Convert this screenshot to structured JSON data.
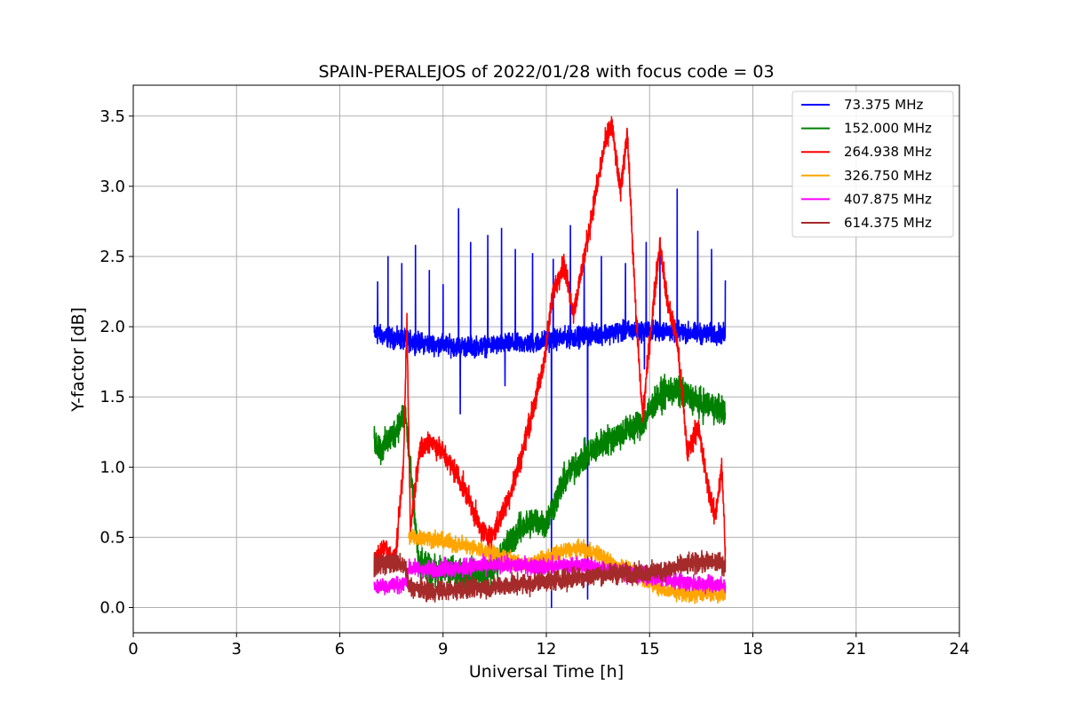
{
  "chart_data": {
    "type": "line",
    "title": "SPAIN-PERALEJOS of 2022/01/28 with focus code = 03",
    "xlabel": "Universal Time [h]",
    "ylabel": "Y-factor [dB]",
    "xlim": [
      0,
      24
    ],
    "ylim": [
      -0.18,
      3.72
    ],
    "xticks": [
      0,
      3,
      6,
      9,
      12,
      15,
      18,
      21,
      24
    ],
    "xtick_labels": [
      "0",
      "3",
      "6",
      "9",
      "12",
      "15",
      "18",
      "21",
      "24"
    ],
    "yticks": [
      0.0,
      0.5,
      1.0,
      1.5,
      2.0,
      2.5,
      3.0,
      3.5
    ],
    "ytick_labels": [
      "0.0",
      "0.5",
      "1.0",
      "1.5",
      "2.0",
      "2.5",
      "3.0",
      "3.5"
    ],
    "grid": true,
    "legend_position": "top-right",
    "series": [
      {
        "name": "73.375 MHz",
        "label": " 73.375 MHz",
        "color": "#0000ff",
        "x": [
          7.0,
          7.5,
          8.0,
          8.5,
          9.0,
          9.5,
          10.0,
          10.5,
          11.0,
          11.5,
          12.0,
          12.5,
          13.0,
          13.5,
          14.0,
          14.5,
          15.0,
          15.5,
          16.0,
          16.5,
          17.0,
          17.2
        ],
        "y": [
          1.95,
          1.92,
          1.9,
          1.88,
          1.87,
          1.86,
          1.86,
          1.87,
          1.88,
          1.88,
          1.9,
          1.92,
          1.93,
          1.95,
          1.96,
          1.97,
          1.97,
          1.97,
          1.96,
          1.95,
          1.95,
          1.94
        ],
        "noise": 0.06,
        "spikes": [
          [
            7.1,
            2.32
          ],
          [
            7.4,
            2.5
          ],
          [
            7.8,
            2.45
          ],
          [
            8.2,
            2.58
          ],
          [
            8.6,
            2.4
          ],
          [
            9.0,
            2.3
          ],
          [
            9.45,
            2.84
          ],
          [
            9.8,
            2.6
          ],
          [
            10.3,
            2.65
          ],
          [
            10.7,
            2.7
          ],
          [
            11.1,
            2.55
          ],
          [
            11.6,
            2.52
          ],
          [
            12.2,
            2.48
          ],
          [
            12.7,
            2.72
          ],
          [
            13.1,
            2.45
          ],
          [
            13.6,
            2.5
          ],
          [
            14.3,
            2.45
          ],
          [
            14.9,
            2.6
          ],
          [
            15.3,
            2.55
          ],
          [
            15.8,
            2.98
          ],
          [
            16.4,
            2.68
          ],
          [
            16.8,
            2.55
          ],
          [
            17.2,
            2.33
          ]
        ],
        "dips": [
          [
            9.5,
            1.38
          ],
          [
            10.8,
            1.58
          ],
          [
            12.15,
            0.0
          ],
          [
            13.2,
            0.06
          ],
          [
            14.85,
            1.7
          ]
        ]
      },
      {
        "name": "152.000 MHz",
        "label": "152.000 MHz",
        "color": "#008000",
        "x": [
          7.0,
          7.2,
          7.6,
          7.9,
          8.3,
          8.8,
          9.2,
          9.6,
          10.0,
          10.4,
          10.8,
          11.2,
          11.6,
          12.0,
          12.5,
          13.0,
          13.5,
          14.0,
          14.5,
          14.8,
          15.2,
          15.6,
          16.0,
          16.5,
          17.0,
          17.2
        ],
        "y": [
          1.2,
          1.12,
          1.25,
          1.4,
          0.3,
          0.25,
          0.26,
          0.24,
          0.24,
          0.25,
          0.42,
          0.55,
          0.62,
          0.6,
          0.9,
          1.05,
          1.15,
          1.22,
          1.28,
          1.32,
          1.48,
          1.55,
          1.52,
          1.45,
          1.42,
          1.4
        ],
        "noise": 0.09
      },
      {
        "name": "264.938 MHz",
        "label": "264.938 MHz",
        "color": "#ff0000",
        "x": [
          7.0,
          7.3,
          7.6,
          7.85,
          7.95,
          8.05,
          8.3,
          8.6,
          9.0,
          9.4,
          9.8,
          10.1,
          10.4,
          10.7,
          11.0,
          11.3,
          11.6,
          11.9,
          12.2,
          12.5,
          12.8,
          13.1,
          13.4,
          13.7,
          13.9,
          14.15,
          14.35,
          14.6,
          14.8,
          15.0,
          15.3,
          15.5,
          15.8,
          16.1,
          16.4,
          16.7,
          16.9,
          17.1,
          17.2
        ],
        "y": [
          0.3,
          0.45,
          0.3,
          1.0,
          2.05,
          0.55,
          1.1,
          1.2,
          1.1,
          0.95,
          0.75,
          0.55,
          0.5,
          0.65,
          0.85,
          1.1,
          1.4,
          1.7,
          2.25,
          2.45,
          2.1,
          2.5,
          2.9,
          3.3,
          3.45,
          2.95,
          3.4,
          2.1,
          1.35,
          1.9,
          2.6,
          2.2,
          1.9,
          1.1,
          1.3,
          0.85,
          0.65,
          1.0,
          0.4
        ],
        "noise": 0.07
      },
      {
        "name": "326.750 MHz",
        "label": "326.750 MHz",
        "color": "#ffa500",
        "x": [
          8.0,
          8.5,
          9.0,
          9.5,
          10.0,
          10.5,
          11.0,
          11.5,
          12.0,
          12.5,
          13.0,
          13.5,
          14.0,
          14.5,
          15.0,
          15.5,
          16.0,
          16.5,
          17.0,
          17.2
        ],
        "y": [
          0.5,
          0.5,
          0.47,
          0.45,
          0.42,
          0.38,
          0.33,
          0.3,
          0.35,
          0.4,
          0.42,
          0.38,
          0.3,
          0.25,
          0.18,
          0.12,
          0.1,
          0.1,
          0.1,
          0.1
        ],
        "noise": 0.05
      },
      {
        "name": "407.875 MHz",
        "label": "407.875 MHz",
        "color": "#ff00ff",
        "x": [
          7.0,
          7.5,
          7.9,
          8.0,
          8.5,
          9.0,
          9.5,
          10.0,
          10.5,
          11.0,
          11.5,
          12.0,
          12.5,
          13.0,
          13.5,
          14.0,
          14.5,
          15.0,
          15.5,
          16.0,
          16.5,
          17.0,
          17.2
        ],
        "y": [
          0.15,
          0.16,
          0.17,
          0.28,
          0.27,
          0.28,
          0.28,
          0.3,
          0.3,
          0.3,
          0.3,
          0.29,
          0.3,
          0.3,
          0.28,
          0.26,
          0.24,
          0.22,
          0.2,
          0.18,
          0.17,
          0.16,
          0.15
        ],
        "noise": 0.05
      },
      {
        "name": "614.375 MHz",
        "label": "614.375 MHz",
        "color": "#a52a2a",
        "x": [
          7.0,
          7.5,
          7.9,
          8.0,
          8.5,
          9.0,
          9.5,
          10.0,
          10.5,
          11.0,
          11.5,
          12.0,
          12.5,
          13.0,
          13.5,
          14.0,
          14.5,
          15.0,
          15.5,
          16.0,
          16.5,
          17.0,
          17.2
        ],
        "y": [
          0.3,
          0.32,
          0.3,
          0.15,
          0.12,
          0.12,
          0.13,
          0.14,
          0.15,
          0.16,
          0.17,
          0.19,
          0.2,
          0.22,
          0.23,
          0.24,
          0.24,
          0.25,
          0.27,
          0.3,
          0.32,
          0.32,
          0.3
        ],
        "noise": 0.06
      }
    ]
  }
}
